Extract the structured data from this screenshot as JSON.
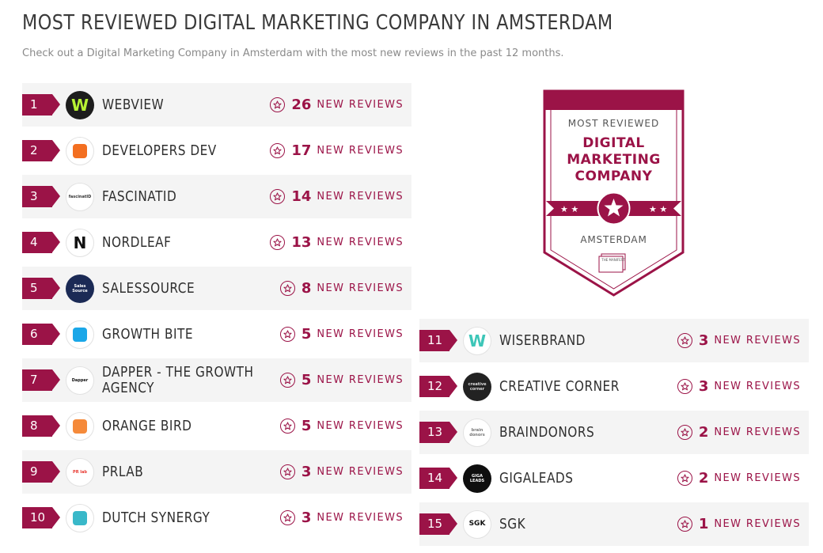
{
  "header": {
    "title": "MOST REVIEWED DIGITAL MARKETING COMPANY IN AMSTERDAM",
    "subtitle": "Check out a Digital Marketing Company in Amsterdam with the most new reviews in the past 12 months."
  },
  "review_suffix": "NEW REVIEWS",
  "badge": {
    "top": "MOST REVIEWED",
    "line1": "DIGITAL",
    "line2": "MARKETING",
    "line3": "COMPANY",
    "location": "AMSTERDAM",
    "brand": "THE MANIFEST"
  },
  "colors": {
    "accent": "#9b1347",
    "row_shade": "#f4f4f4"
  },
  "companies_left": [
    {
      "rank": "1",
      "name": "WEBVIEW",
      "reviews": "26",
      "logo_text": "W",
      "logo_bg": "#1d1d1d",
      "logo_fg": "#b6f234"
    },
    {
      "rank": "2",
      "name": "DEVELOPERS DEV",
      "reviews": "17",
      "logo_text": "",
      "logo_bg": "#ffffff",
      "logo_fg": "#f36f21"
    },
    {
      "rank": "3",
      "name": "FASCINATID",
      "reviews": "14",
      "logo_text": "fascinatID",
      "logo_bg": "#ffffff",
      "logo_fg": "#333333"
    },
    {
      "rank": "4",
      "name": "NORDLEAF",
      "reviews": "13",
      "logo_text": "N",
      "logo_bg": "#ffffff",
      "logo_fg": "#111111"
    },
    {
      "rank": "5",
      "name": "SALESSOURCE",
      "reviews": "8",
      "logo_text": "Sales Source",
      "logo_bg": "#1b2a55",
      "logo_fg": "#ffffff"
    },
    {
      "rank": "6",
      "name": "GROWTH BITE",
      "reviews": "5",
      "logo_text": "",
      "logo_bg": "#ffffff",
      "logo_fg": "#1aa7e8"
    },
    {
      "rank": "7",
      "name": "DAPPER - THE GROWTH AGENCY",
      "reviews": "5",
      "logo_text": "Dapper",
      "logo_bg": "#ffffff",
      "logo_fg": "#111111"
    },
    {
      "rank": "8",
      "name": "ORANGE BIRD",
      "reviews": "5",
      "logo_text": "",
      "logo_bg": "#ffffff",
      "logo_fg": "#f58a3a"
    },
    {
      "rank": "9",
      "name": "PRLAB",
      "reviews": "3",
      "logo_text": "PR lab",
      "logo_bg": "#ffffff",
      "logo_fg": "#e8372f"
    },
    {
      "rank": "10",
      "name": "DUTCH SYNERGY",
      "reviews": "3",
      "logo_text": "",
      "logo_bg": "#ffffff",
      "logo_fg": "#39b8c9"
    }
  ],
  "companies_right": [
    {
      "rank": "11",
      "name": "WISERBRAND",
      "reviews": "3",
      "logo_text": "W",
      "logo_bg": "#ffffff",
      "logo_fg": "#3dc6b8"
    },
    {
      "rank": "12",
      "name": "CREATIVE CORNER",
      "reviews": "3",
      "logo_text": "creative corner",
      "logo_bg": "#222222",
      "logo_fg": "#dddddd"
    },
    {
      "rank": "13",
      "name": "BRAINDONORS",
      "reviews": "2",
      "logo_text": "brain donors",
      "logo_bg": "#ffffff",
      "logo_fg": "#777777"
    },
    {
      "rank": "14",
      "name": "GIGALEADS",
      "reviews": "2",
      "logo_text": "GIGA LEADS",
      "logo_bg": "#0e0e0e",
      "logo_fg": "#ffffff"
    },
    {
      "rank": "15",
      "name": "SGK",
      "reviews": "1",
      "logo_text": "SGK",
      "logo_bg": "#ffffff",
      "logo_fg": "#111111"
    }
  ]
}
